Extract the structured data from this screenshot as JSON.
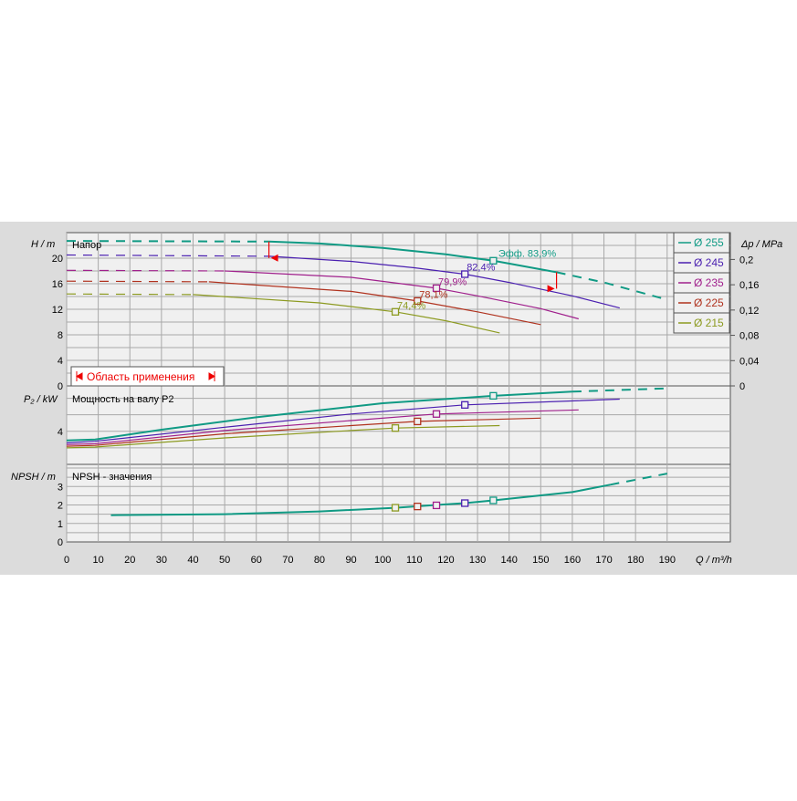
{
  "colors": {
    "panel_bg": "#dcdcdc",
    "plot_bg": "#f0f0f0",
    "d255": "#109a84",
    "d245": "#4a1fb0",
    "d235": "#a0208c",
    "d225": "#b0321e",
    "d215": "#8c9a20",
    "range_red": "#ee0000"
  },
  "legend": [
    {
      "label": "Ø 255",
      "color_key": "d255"
    },
    {
      "label": "Ø 245",
      "color_key": "d245"
    },
    {
      "label": "Ø 235",
      "color_key": "d235"
    },
    {
      "label": "Ø 225",
      "color_key": "d225"
    },
    {
      "label": "Ø 215",
      "color_key": "d215"
    }
  ],
  "range_label": "Область применения",
  "chart_data": [
    {
      "type": "line",
      "title": "Напор",
      "ylabel": "H / m",
      "xlabel": "Q / m³/h",
      "x_ticks": [
        "0",
        "10",
        "20",
        "30",
        "40",
        "50",
        "60",
        "70",
        "80",
        "90",
        "100",
        "110",
        "120",
        "130",
        "140",
        "150",
        "160",
        "170",
        "180",
        "190"
      ],
      "xlim": [
        0,
        210
      ],
      "ylim": [
        0,
        24
      ],
      "y_ticks": [
        "0",
        "4",
        "8",
        "12",
        "16",
        "20"
      ],
      "y2_label": "Δp / MPa",
      "y2_ticks": [
        "0",
        "0,04",
        "0,08",
        "0,12",
        "0,16",
        "0,2"
      ],
      "series": [
        {
          "name": "Ø 255",
          "color_key": "d255",
          "dashed": [
            [
              0,
              22.7
            ],
            [
              64,
              22.6
            ]
          ],
          "solid": [
            [
              64,
              22.6
            ],
            [
              80,
              22.3
            ],
            [
              100,
              21.6
            ],
            [
              120,
              20.6
            ],
            [
              135,
              19.6
            ],
            [
              155,
              17.8
            ]
          ],
          "dashed_end": [
            [
              155,
              17.8
            ],
            [
              170,
              16.2
            ],
            [
              190,
              13.5
            ]
          ]
        },
        {
          "name": "Ø 245",
          "color_key": "d245",
          "dashed": [
            [
              0,
              20.5
            ],
            [
              64,
              20.3
            ]
          ],
          "solid": [
            [
              64,
              20.3
            ],
            [
              90,
              19.5
            ],
            [
              110,
              18.5
            ],
            [
              126,
              17.5
            ],
            [
              140,
              16.2
            ],
            [
              160,
              14.1
            ],
            [
              175,
              12.2
            ]
          ]
        },
        {
          "name": "Ø 235",
          "color_key": "d235",
          "dashed": [
            [
              0,
              18.1
            ],
            [
              50,
              18.0
            ]
          ],
          "solid": [
            [
              50,
              18.0
            ],
            [
              90,
              17.0
            ],
            [
              117,
              15.3
            ],
            [
              130,
              14.1
            ],
            [
              150,
              12.1
            ],
            [
              162,
              10.5
            ]
          ]
        },
        {
          "name": "Ø 225",
          "color_key": "d225",
          "dashed": [
            [
              0,
              16.4
            ],
            [
              45,
              16.3
            ]
          ],
          "solid": [
            [
              45,
              16.3
            ],
            [
              90,
              14.8
            ],
            [
              111,
              13.3
            ],
            [
              130,
              11.6
            ],
            [
              150,
              9.6
            ]
          ]
        },
        {
          "name": "Ø 215",
          "color_key": "d215",
          "dashed": [
            [
              0,
              14.4
            ],
            [
              40,
              14.3
            ]
          ],
          "solid": [
            [
              40,
              14.3
            ],
            [
              80,
              13.0
            ],
            [
              104,
              11.6
            ],
            [
              120,
              10.2
            ],
            [
              137,
              8.3
            ]
          ]
        }
      ],
      "markers": [
        {
          "color_key": "d255",
          "x": 135,
          "y": 19.6
        },
        {
          "color_key": "d245",
          "x": 126,
          "y": 17.5
        },
        {
          "color_key": "d235",
          "x": 117,
          "y": 15.3
        },
        {
          "color_key": "d225",
          "x": 111,
          "y": 13.3
        },
        {
          "color_key": "d215",
          "x": 104,
          "y": 11.6
        }
      ],
      "annotations": [
        {
          "text": "Эфф.  83,9%",
          "color_key": "d255",
          "x": 136,
          "y": 20.2
        },
        {
          "text": "82,4%",
          "color_key": "d245",
          "x": 126,
          "y": 18.1
        },
        {
          "text": "79,9%",
          "color_key": "d235",
          "x": 117,
          "y": 15.8
        },
        {
          "text": "78,1%",
          "color_key": "d225",
          "x": 111,
          "y": 13.8
        },
        {
          "text": "74,4%",
          "color_key": "d215",
          "x": 104,
          "y": 12.1
        }
      ],
      "range": {
        "q_min": 64,
        "q_max": 155
      }
    },
    {
      "type": "line",
      "title": "Мощность на валу P2",
      "ylabel": "P₂ / kW",
      "xlim": [
        0,
        210
      ],
      "ylim": [
        0,
        9.5
      ],
      "y_ticks": [
        "4"
      ],
      "series": [
        {
          "name": "Ø 255",
          "color_key": "d255",
          "points": [
            [
              0,
              2.9
            ],
            [
              9,
              3.0
            ],
            [
              30,
              4.2
            ],
            [
              60,
              5.7
            ],
            [
              100,
              7.4
            ],
            [
              135,
              8.3
            ],
            [
              160,
              8.8
            ]
          ],
          "dashed_end": [
            [
              160,
              8.8
            ],
            [
              190,
              9.2
            ]
          ]
        },
        {
          "name": "Ø 245",
          "color_key": "d245",
          "points": [
            [
              0,
              2.6
            ],
            [
              9,
              2.8
            ],
            [
              50,
              4.5
            ],
            [
              90,
              6.1
            ],
            [
              126,
              7.2
            ],
            [
              175,
              7.9
            ]
          ]
        },
        {
          "name": "Ø 235",
          "color_key": "d235",
          "points": [
            [
              0,
              2.4
            ],
            [
              9,
              2.5
            ],
            [
              50,
              4.1
            ],
            [
              90,
              5.3
            ],
            [
              117,
              6.1
            ],
            [
              162,
              6.6
            ]
          ]
        },
        {
          "name": "Ø 225",
          "color_key": "d225",
          "points": [
            [
              0,
              2.2
            ],
            [
              9,
              2.3
            ],
            [
              50,
              3.7
            ],
            [
              90,
              4.7
            ],
            [
              111,
              5.2
            ],
            [
              150,
              5.6
            ]
          ]
        },
        {
          "name": "Ø 215",
          "color_key": "d215",
          "points": [
            [
              0,
              2.0
            ],
            [
              9,
              2.1
            ],
            [
              50,
              3.2
            ],
            [
              90,
              4.1
            ],
            [
              104,
              4.4
            ],
            [
              137,
              4.7
            ]
          ]
        }
      ],
      "markers": [
        {
          "color_key": "d255",
          "x": 135,
          "y": 8.3
        },
        {
          "color_key": "d245",
          "x": 126,
          "y": 7.2
        },
        {
          "color_key": "d235",
          "x": 117,
          "y": 6.1
        },
        {
          "color_key": "d225",
          "x": 111,
          "y": 5.2
        },
        {
          "color_key": "d215",
          "x": 104,
          "y": 4.4
        }
      ]
    },
    {
      "type": "line",
      "title": "NPSH - значения",
      "ylabel": "NPSH / m",
      "xlim": [
        0,
        210
      ],
      "ylim": [
        0,
        4.2
      ],
      "y_ticks": [
        "0",
        "1",
        "2",
        "3"
      ],
      "series": [
        {
          "name": "Ø 255",
          "color_key": "d255",
          "points": [
            [
              14,
              1.45
            ],
            [
              50,
              1.5
            ],
            [
              80,
              1.65
            ],
            [
              104,
              1.85
            ],
            [
              117,
              2.0
            ],
            [
              126,
              2.1
            ],
            [
              135,
              2.25
            ],
            [
              160,
              2.7
            ],
            [
              172,
              3.1
            ]
          ],
          "dashed_end": [
            [
              172,
              3.1
            ],
            [
              190,
              3.7
            ]
          ]
        }
      ],
      "markers": [
        {
          "color_key": "d255",
          "x": 135,
          "y": 2.25
        },
        {
          "color_key": "d245",
          "x": 126,
          "y": 2.1
        },
        {
          "color_key": "d235",
          "x": 117,
          "y": 1.98
        },
        {
          "color_key": "d225",
          "x": 111,
          "y": 1.92
        },
        {
          "color_key": "d215",
          "x": 104,
          "y": 1.85
        }
      ]
    }
  ]
}
